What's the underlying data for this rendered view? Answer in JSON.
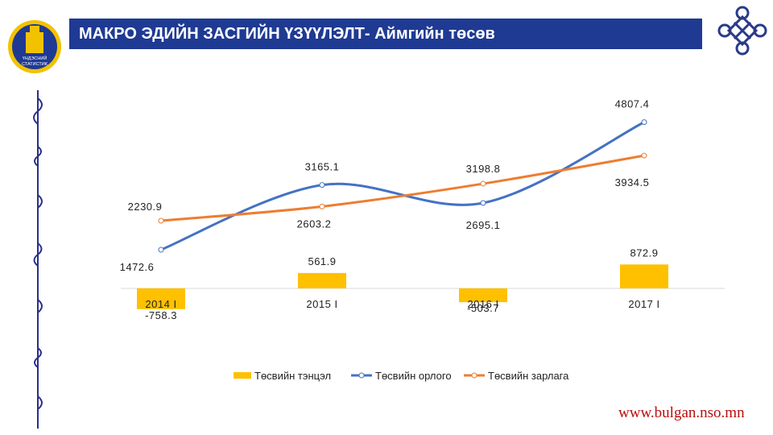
{
  "header": {
    "title": "МАКРО ЭДИЙН ЗАСГИЙН ҮЗҮҮЛЭЛТ- Аймгийн төсөв"
  },
  "logo": {
    "line1": "ҮНДЭСНИЙ",
    "line2": "СТАТИСТИК"
  },
  "footer": {
    "url": "www.bulgan.nso.mn"
  },
  "colors": {
    "title_bg": "#1f3a93",
    "balance": "#ffc000",
    "revenue": "#4472c4",
    "expenditure": "#ed7d31",
    "url": "#b80d0d"
  },
  "chart_data": {
    "type": "bar",
    "categories": [
      "2014 I",
      "2015 I",
      "2016 I",
      "2017 I"
    ],
    "series": [
      {
        "name": "Төсвийн тэнцэл",
        "kind": "bar",
        "values": [
          -758.3,
          561.9,
          -503.7,
          872.9
        ],
        "labels": [
          "-758.3",
          "561.9",
          "-503.7",
          "872.9"
        ]
      },
      {
        "name": "Төсвийн орлого",
        "kind": "line",
        "values": [
          1472.6,
          3165.1,
          2695.1,
          4807.4
        ],
        "labels": [
          "1472.6",
          "3165.1",
          "2695.1",
          "4807.4"
        ]
      },
      {
        "name": "Төсвийн зарлага",
        "kind": "line",
        "values": [
          2230.9,
          2603.2,
          3198.8,
          3934.5
        ],
        "labels": [
          "2230.9",
          "2603.2",
          "3198.8",
          "3934.5"
        ]
      }
    ],
    "legend": "bottom",
    "grid": false
  }
}
